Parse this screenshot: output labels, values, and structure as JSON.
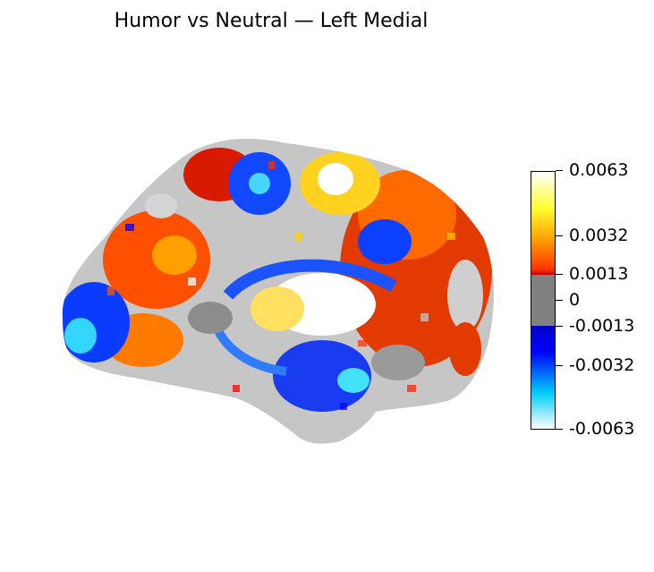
{
  "figure": {
    "title": "Humor vs Neutral — Left Medial"
  },
  "brain_view": {
    "hemisphere": "left",
    "view": "medial",
    "icon": "brain-surface-map"
  },
  "colorbar": {
    "ticks": [
      {
        "label": "0.0063",
        "value": 0.0063
      },
      {
        "label": "0.0032",
        "value": 0.0032
      },
      {
        "label": "0.0013",
        "value": 0.0013
      },
      {
        "label": "0",
        "value": 0
      },
      {
        "label": "-0.0013",
        "value": -0.0013
      },
      {
        "label": "-0.0032",
        "value": -0.0032
      },
      {
        "label": "-0.0063",
        "value": -0.0063
      }
    ],
    "colors": {
      "positive_max": "#ffffff",
      "positive_mid": "#ffff33",
      "positive_low": "#ff3300",
      "threshold_pos": "#c00000",
      "neutral": "#808080",
      "threshold_neg": "#0000c8",
      "negative_low": "#0000ff",
      "negative_mid": "#00ccff",
      "negative_max": "#ffffff"
    }
  }
}
